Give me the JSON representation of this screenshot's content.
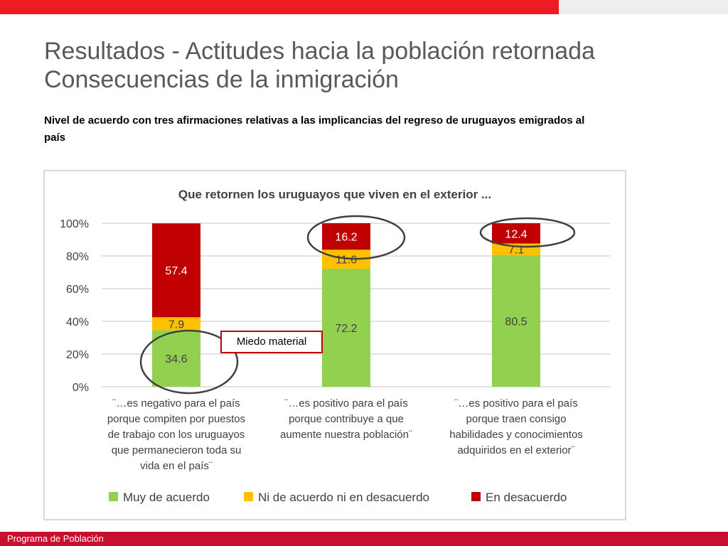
{
  "header": {
    "title_line1": "Resultados - Actitudes hacia la población retornada",
    "title_line2": "Consecuencias de la inmigración",
    "subtitle": "Nivel de acuerdo con tres afirmaciones relativas a las implicancias del regreso de uruguayos emigrados al país"
  },
  "callout": {
    "text": "Miedo material"
  },
  "footer": {
    "text": "Programa de Población"
  },
  "colors": {
    "accent": "#ed1c24",
    "footer": "#c8102e",
    "muy_de_acuerdo": "#92d050",
    "ni_de_acuerdo": "#ffc000",
    "en_desacuerdo": "#c00000"
  },
  "chart_data": {
    "type": "bar",
    "stacked": true,
    "title": "Que retornen los uruguayos que viven en el exterior ...",
    "categories": [
      [
        "¨…es negativo para el país",
        "porque compiten por puestos",
        "de trabajo con los uruguayos",
        "que permanecieron toda su",
        "vida en el país¨"
      ],
      [
        "¨…es positivo para el país",
        "porque contribuye a que",
        "aumente nuestra población¨"
      ],
      [
        "¨…es positivo para el país",
        "porque traen consigo",
        "habilidades y conocimientos",
        "adquiridos en el exterior¨"
      ]
    ],
    "series": [
      {
        "name": "Muy de acuerdo",
        "color": "#92d050",
        "values": [
          34.6,
          72.2,
          80.5
        ]
      },
      {
        "name": "Ni de acuerdo ni en desacuerdo",
        "color": "#ffc000",
        "values": [
          7.9,
          11.6,
          7.1
        ]
      },
      {
        "name": "En desacuerdo",
        "color": "#c00000",
        "values": [
          57.4,
          16.2,
          12.4
        ]
      }
    ],
    "data_labels": [
      [
        "34.6",
        "72.2",
        "80.5"
      ],
      [
        "7.9",
        "11.6",
        "7.1"
      ],
      [
        "57.4",
        "16.2",
        "12.4"
      ]
    ],
    "yticks": [
      "0%",
      "20%",
      "40%",
      "60%",
      "80%",
      "100%"
    ],
    "ylim": [
      0,
      100
    ],
    "grid": true,
    "legend_position": "bottom",
    "highlighted": [
      "Muy de acuerdo / ¨…es negativo para el país",
      "En desacuerdo / ¨…es positivo para el país porque contribuye a que aumente nuestra población¨",
      "En desacuerdo / ¨…es positivo para el país porque traen consigo habilidades y conocimientos adquiridos en el exterior¨"
    ]
  }
}
